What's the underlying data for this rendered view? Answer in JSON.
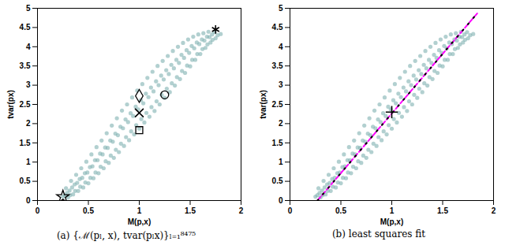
{
  "chart_data": [
    {
      "type": "scatter",
      "title": "(a) {ℳ(pₗ, x), tvar(pₗx)}ₗ₌₁⁸⁴⁷⁵",
      "xlabel": "M(p,x)",
      "ylabel": "tvar(px)",
      "xlim": [
        0,
        2
      ],
      "xticks": [
        0,
        0.5,
        1,
        1.5,
        2
      ],
      "ylim": [
        0,
        5
      ],
      "yticks": [
        0,
        0.5,
        1,
        1.5,
        2,
        2.5,
        3,
        3.5,
        4,
        4.5,
        5
      ],
      "grid": false,
      "color": "#7fb0b0",
      "x": [
        0.25,
        0.27,
        0.3,
        0.32,
        0.29,
        0.315,
        0.28,
        0.35,
        0.37,
        0.34,
        0.365,
        0.33,
        0.4,
        0.42,
        0.39,
        0.415,
        0.38,
        0.45,
        0.47,
        0.44,
        0.465,
        0.43,
        0.5,
        0.52,
        0.49,
        0.515,
        0.48,
        0.55,
        0.57,
        0.54,
        0.565,
        0.53,
        0.6,
        0.62,
        0.59,
        0.615,
        0.58,
        0.65,
        0.67,
        0.64,
        0.665,
        0.63,
        0.7,
        0.72,
        0.69,
        0.715,
        0.68,
        0.75,
        0.77,
        0.74,
        0.765,
        0.73,
        0.8,
        0.82,
        0.79,
        0.815,
        0.78,
        0.85,
        0.87,
        0.84,
        0.865,
        0.83,
        0.9,
        0.92,
        0.89,
        0.915,
        0.88,
        0.95,
        0.97,
        0.94,
        0.965,
        0.93,
        1.0,
        1.02,
        0.99,
        1.015,
        0.98,
        1.05,
        1.07,
        1.04,
        1.065,
        1.03,
        1.1,
        1.12,
        1.09,
        1.115,
        1.08,
        1.15,
        1.17,
        1.14,
        1.165,
        1.13,
        1.2,
        1.22,
        1.19,
        1.215,
        1.18,
        1.25,
        1.27,
        1.24,
        1.265,
        1.23,
        1.3,
        1.32,
        1.29,
        1.315,
        1.28,
        1.35,
        1.37,
        1.34,
        1.365,
        1.33,
        1.4,
        1.42,
        1.39,
        1.415,
        1.38,
        1.45,
        1.47,
        1.44,
        1.465,
        1.43,
        1.5,
        1.52,
        1.49,
        1.515,
        1.48,
        1.55,
        1.57,
        1.54,
        1.565,
        1.53,
        1.6,
        1.62,
        1.59,
        1.615,
        1.58,
        1.65,
        1.67,
        1.64,
        1.665,
        1.63,
        1.7,
        1.72,
        1.69,
        1.715,
        1.68,
        1.75,
        1.77,
        1.74,
        1.8
      ],
      "y": [
        0.1,
        0.14,
        0.08,
        0.14,
        0.2,
        0.26,
        0.32,
        0.16,
        0.25,
        0.34,
        0.42,
        0.51,
        0.25,
        0.36,
        0.46,
        0.56,
        0.67,
        0.34,
        0.47,
        0.59,
        0.71,
        0.84,
        0.45,
        0.59,
        0.73,
        0.87,
        1.01,
        0.58,
        0.73,
        0.89,
        1.05,
        1.2,
        0.71,
        0.88,
        1.05,
        1.22,
        1.39,
        0.84,
        1.02,
        1.2,
        1.38,
        1.56,
        0.98,
        1.17,
        1.37,
        1.56,
        1.75,
        1.11,
        1.32,
        1.53,
        1.74,
        1.95,
        1.26,
        1.48,
        1.7,
        1.92,
        2.14,
        1.42,
        1.65,
        1.88,
        2.11,
        2.34,
        1.57,
        1.8,
        2.04,
        2.27,
        2.5,
        1.72,
        1.96,
        2.2,
        2.44,
        2.68,
        1.87,
        2.12,
        2.37,
        2.61,
        2.86,
        2.03,
        2.28,
        2.53,
        2.78,
        3.03,
        2.18,
        2.43,
        2.69,
        2.94,
        3.19,
        2.33,
        2.58,
        2.84,
        3.1,
        3.35,
        2.5,
        2.75,
        3.0,
        3.25,
        3.5,
        2.67,
        2.91,
        3.15,
        3.39,
        3.63,
        2.82,
        3.05,
        3.29,
        3.53,
        3.76,
        2.99,
        3.21,
        3.44,
        3.66,
        3.89,
        3.16,
        3.37,
        3.58,
        3.79,
        4.0,
        3.32,
        3.51,
        3.71,
        3.91,
        4.1,
        3.49,
        3.66,
        3.84,
        4.02,
        4.19,
        3.66,
        3.81,
        3.96,
        4.11,
        4.26,
        3.81,
        3.94,
        4.07,
        4.19,
        4.32,
        3.97,
        4.06,
        4.16,
        4.26,
        4.35,
        4.11,
        4.18,
        4.25,
        4.32,
        4.39,
        4.22,
        4.3,
        4.38,
        4.33
      ],
      "markers": [
        {
          "x": 0.25,
          "y": 0.1,
          "marker": "star",
          "color": "#000000"
        },
        {
          "x": 1.75,
          "y": 4.45,
          "marker": "asterisk",
          "color": "#000000"
        },
        {
          "x": 1.0,
          "y": 2.72,
          "marker": "diamond",
          "color": "#000000"
        },
        {
          "x": 1.25,
          "y": 2.75,
          "marker": "circle",
          "color": "#000000"
        },
        {
          "x": 1.0,
          "y": 2.28,
          "marker": "times",
          "color": "#000000"
        },
        {
          "x": 1.0,
          "y": 1.83,
          "marker": "square",
          "color": "#000000"
        }
      ]
    },
    {
      "type": "scatter",
      "title": "(b) least squares fit",
      "xlabel": "M(p,x)",
      "ylabel": "tvar(px)",
      "xlim": [
        0,
        2
      ],
      "xticks": [
        0,
        0.5,
        1,
        1.5,
        2
      ],
      "ylim": [
        0,
        5
      ],
      "yticks": [
        0,
        0.5,
        1,
        1.5,
        2,
        2.5,
        3,
        3.5,
        4,
        4.5,
        5
      ],
      "grid": false,
      "color": "#7fb0b0",
      "x": [
        0.25,
        0.27,
        0.3,
        0.32,
        0.29,
        0.315,
        0.28,
        0.35,
        0.37,
        0.34,
        0.365,
        0.33,
        0.4,
        0.42,
        0.39,
        0.415,
        0.38,
        0.45,
        0.47,
        0.44,
        0.465,
        0.43,
        0.5,
        0.52,
        0.49,
        0.515,
        0.48,
        0.55,
        0.57,
        0.54,
        0.565,
        0.53,
        0.6,
        0.62,
        0.59,
        0.615,
        0.58,
        0.65,
        0.67,
        0.64,
        0.665,
        0.63,
        0.7,
        0.72,
        0.69,
        0.715,
        0.68,
        0.75,
        0.77,
        0.74,
        0.765,
        0.73,
        0.8,
        0.82,
        0.79,
        0.815,
        0.78,
        0.85,
        0.87,
        0.84,
        0.865,
        0.83,
        0.9,
        0.92,
        0.89,
        0.915,
        0.88,
        0.95,
        0.97,
        0.94,
        0.965,
        0.93,
        1.0,
        1.02,
        0.99,
        1.015,
        0.98,
        1.05,
        1.07,
        1.04,
        1.065,
        1.03,
        1.1,
        1.12,
        1.09,
        1.115,
        1.08,
        1.15,
        1.17,
        1.14,
        1.165,
        1.13,
        1.2,
        1.22,
        1.19,
        1.215,
        1.18,
        1.25,
        1.27,
        1.24,
        1.265,
        1.23,
        1.3,
        1.32,
        1.29,
        1.315,
        1.28,
        1.35,
        1.37,
        1.34,
        1.365,
        1.33,
        1.4,
        1.42,
        1.39,
        1.415,
        1.38,
        1.45,
        1.47,
        1.44,
        1.465,
        1.43,
        1.5,
        1.52,
        1.49,
        1.515,
        1.48,
        1.55,
        1.57,
        1.54,
        1.565,
        1.53,
        1.6,
        1.62,
        1.59,
        1.615,
        1.58,
        1.65,
        1.67,
        1.64,
        1.665,
        1.63,
        1.7,
        1.72,
        1.69,
        1.715,
        1.68,
        1.75,
        1.77,
        1.74,
        1.8
      ],
      "y": [
        0.1,
        0.14,
        0.08,
        0.14,
        0.2,
        0.26,
        0.32,
        0.16,
        0.25,
        0.34,
        0.42,
        0.51,
        0.25,
        0.36,
        0.46,
        0.56,
        0.67,
        0.34,
        0.47,
        0.59,
        0.71,
        0.84,
        0.45,
        0.59,
        0.73,
        0.87,
        1.01,
        0.58,
        0.73,
        0.89,
        1.05,
        1.2,
        0.71,
        0.88,
        1.05,
        1.22,
        1.39,
        0.84,
        1.02,
        1.2,
        1.38,
        1.56,
        0.98,
        1.17,
        1.37,
        1.56,
        1.75,
        1.11,
        1.32,
        1.53,
        1.74,
        1.95,
        1.26,
        1.48,
        1.7,
        1.92,
        2.14,
        1.42,
        1.65,
        1.88,
        2.11,
        2.34,
        1.57,
        1.8,
        2.04,
        2.27,
        2.5,
        1.72,
        1.96,
        2.2,
        2.44,
        2.68,
        1.87,
        2.12,
        2.37,
        2.61,
        2.86,
        2.03,
        2.28,
        2.53,
        2.78,
        3.03,
        2.18,
        2.43,
        2.69,
        2.94,
        3.19,
        2.33,
        2.58,
        2.84,
        3.1,
        3.35,
        2.5,
        2.75,
        3.0,
        3.25,
        3.5,
        2.67,
        2.91,
        3.15,
        3.39,
        3.63,
        2.82,
        3.05,
        3.29,
        3.53,
        3.76,
        2.99,
        3.21,
        3.44,
        3.66,
        3.89,
        3.16,
        3.37,
        3.58,
        3.79,
        4.0,
        3.32,
        3.51,
        3.71,
        3.91,
        4.1,
        3.49,
        3.66,
        3.84,
        4.02,
        4.19,
        3.66,
        3.81,
        3.96,
        4.11,
        4.26,
        3.81,
        3.94,
        4.07,
        4.19,
        4.32,
        3.97,
        4.06,
        4.16,
        4.26,
        4.35,
        4.11,
        4.18,
        4.25,
        4.32,
        4.39,
        4.22,
        4.3,
        4.38,
        4.33
      ],
      "lines": [
        {
          "x": [
            0.27,
            1.85
          ],
          "values": [
            0,
            4.9
          ],
          "color": "#ff00ff",
          "line_style": "dashed",
          "marker": "dot"
        }
      ],
      "markers": [
        {
          "x": 1.0,
          "y": 2.3,
          "marker": "plus",
          "color": "#000000"
        }
      ]
    }
  ]
}
